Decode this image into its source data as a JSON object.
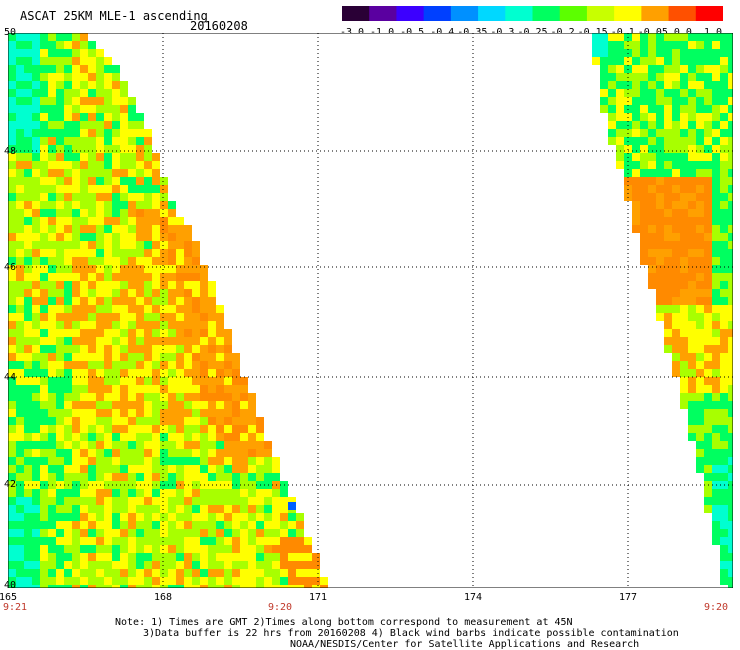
{
  "header": {
    "title": "ASCAT 25KM MLE-1 ascending",
    "date": "20160208"
  },
  "colorbar": {
    "ticks": [
      "-3.0",
      "-1.0",
      "-0.5",
      "-0.4",
      "-0.35",
      "-0.3",
      "-0.25",
      "-0.2",
      "-0.15",
      "-0.1",
      "-0.05",
      "0.0",
      "1.0"
    ],
    "colors": [
      "#2a0036",
      "#5a00a0",
      "#3c00ff",
      "#0040ff",
      "#0090ff",
      "#00d8ff",
      "#00ffd0",
      "#00ff60",
      "#5cff00",
      "#c8ff00",
      "#ffff00",
      "#ffa000",
      "#ff5000",
      "#ff0000"
    ]
  },
  "map": {
    "lat_labels": [
      "50",
      "48",
      "46",
      "44",
      "42",
      "40"
    ],
    "lon_labels": [
      "165",
      "168",
      "171",
      "174",
      "177"
    ],
    "time_left": "9:21",
    "time_mid": "9:20",
    "time_right": "9:20",
    "palette": {
      "cyan": "#00ffd0",
      "green": "#00ff60",
      "ylgreen": "#a8ff00",
      "yellow": "#ffff00",
      "orange": "#ffa000",
      "dkorange": "#ff8a00",
      "blue": "#0060ff"
    }
  },
  "notes": {
    "line1": "Note: 1) Times are GMT 2)Times along bottom correspond to measurement at 45N",
    "line2": "3)Data buffer is 22 hrs from 20160208 4) Black wind barbs indicate possible contamination",
    "line3": "NOAA/NESDIS/Center for Satellite Applications and Research"
  }
}
